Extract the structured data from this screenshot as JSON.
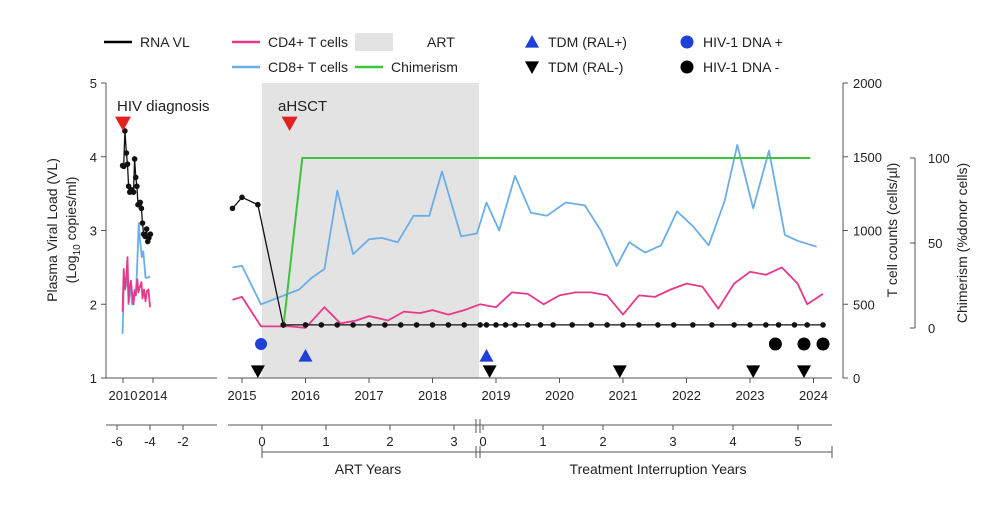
{
  "chart_data": {
    "type": "line",
    "legend": [
      {
        "key": "rna",
        "label": "RNA VL",
        "color": "#000000",
        "symbol": "line"
      },
      {
        "key": "cd4",
        "label": "CD4+ T cells",
        "color": "#e8388a",
        "symbol": "line"
      },
      {
        "key": "cd8",
        "label": "CD8+ T cells",
        "color": "#6aaee8",
        "symbol": "line"
      },
      {
        "key": "art",
        "label": "ART",
        "color": "#e3e3e3",
        "symbol": "rect"
      },
      {
        "key": "chim",
        "label": "Chimerism",
        "color": "#3cc43c",
        "symbol": "line"
      },
      {
        "key": "tdm_pos",
        "label": "TDM (RAL+)",
        "color": "#1f3fd6",
        "symbol": "triangle-up"
      },
      {
        "key": "tdm_neg",
        "label": "TDM (RAL-)",
        "color": "#000000",
        "symbol": "triangle-down"
      },
      {
        "key": "dna_pos",
        "label": "HIV-1 DNA +",
        "color": "#1f3fd6",
        "symbol": "circle"
      },
      {
        "key": "dna_neg",
        "label": "HIV-1 DNA -",
        "color": "#000000",
        "symbol": "circle"
      }
    ],
    "y_left": {
      "label_line1": "Plasma Viral Load (VL)",
      "label_line2_prefix": "(Log",
      "label_line2_sub": "10",
      "label_line2_suffix": " copies/ml)",
      "ticks": [
        "1",
        "2",
        "3",
        "4",
        "5"
      ],
      "range": [
        1,
        5
      ]
    },
    "y_right1": {
      "label": "T cell counts (cells/µl)",
      "ticks": [
        "0",
        "500",
        "1000",
        "1500",
        "2000"
      ],
      "range": [
        0,
        2000
      ]
    },
    "y_right2": {
      "label": "Chimerism (%donor cells)",
      "ticks": [
        "0",
        "50",
        "100"
      ],
      "range": [
        0,
        100
      ]
    },
    "x_years_panel1": {
      "ticks": [
        "2010",
        "2014"
      ]
    },
    "x_years_panel2": {
      "ticks": [
        "2015",
        "2016",
        "2017",
        "2018",
        "2019",
        "2020",
        "2021",
        "2022",
        "2023",
        "2024"
      ]
    },
    "x_relative_panel1": {
      "ticks": [
        "-6",
        "-4",
        "-2"
      ]
    },
    "x_art_years": {
      "label": "ART Years",
      "ticks": [
        "0",
        "1",
        "2",
        "3"
      ]
    },
    "x_ti_years": {
      "label": "Treatment Interruption Years",
      "ticks": [
        "0",
        "1",
        "2",
        "3",
        "4",
        "5"
      ]
    },
    "annotations": {
      "hiv_diagnosis": {
        "label": "HIV diagnosis",
        "year": 2010.0
      },
      "ahsct": {
        "label": "aHSCT",
        "year": 2015.75
      }
    },
    "art_period": [
      2015.45,
      2018.75
    ],
    "rna_vl": {
      "panel1": [
        [
          2009.95,
          3.88
        ],
        [
          2010.1,
          3.87
        ],
        [
          2010.25,
          4.35
        ],
        [
          2010.45,
          4.05
        ],
        [
          2010.6,
          3.9
        ],
        [
          2010.75,
          3.6
        ],
        [
          2010.9,
          3.52
        ],
        [
          2011.05,
          3.55
        ],
        [
          2011.2,
          3.55
        ],
        [
          2011.4,
          3.52
        ],
        [
          2011.55,
          3.97
        ],
        [
          2011.7,
          3.72
        ],
        [
          2011.85,
          3.6
        ],
        [
          2012.0,
          3.35
        ],
        [
          2012.15,
          3.35
        ],
        [
          2012.3,
          3.38
        ],
        [
          2012.45,
          3.3
        ],
        [
          2012.6,
          3.1
        ],
        [
          2012.75,
          2.95
        ],
        [
          2012.95,
          2.92
        ],
        [
          2013.15,
          3.02
        ],
        [
          2013.3,
          2.85
        ],
        [
          2013.45,
          2.9
        ],
        [
          2013.65,
          2.95
        ]
      ],
      "panel2": [
        [
          2014.85,
          3.3
        ],
        [
          2015.0,
          3.45
        ],
        [
          2015.25,
          3.35
        ],
        [
          2015.65,
          1.72
        ]
      ],
      "undetectable_value": 1.72,
      "undetectable_points": [
        2015.65,
        2016.0,
        2016.25,
        2016.5,
        2016.75,
        2017.0,
        2017.25,
        2017.5,
        2017.75,
        2018.0,
        2018.25,
        2018.5,
        2018.75,
        2018.85,
        2019.0,
        2019.15,
        2019.3,
        2019.5,
        2019.7,
        2019.9,
        2020.2,
        2020.5,
        2020.75,
        2021.0,
        2021.25,
        2021.55,
        2021.8,
        2022.1,
        2022.4,
        2022.75,
        2023.0,
        2023.25,
        2023.45,
        2023.7,
        2023.9,
        2024.15
      ]
    },
    "cd4": {
      "panel1": [
        [
          2009.95,
          450
        ],
        [
          2010.1,
          740
        ],
        [
          2010.25,
          600
        ],
        [
          2010.45,
          700
        ],
        [
          2010.6,
          820
        ],
        [
          2010.75,
          510
        ],
        [
          2010.9,
          620
        ],
        [
          2011.05,
          660
        ],
        [
          2011.2,
          580
        ],
        [
          2011.4,
          500
        ],
        [
          2011.55,
          590
        ],
        [
          2011.7,
          560
        ],
        [
          2011.9,
          670
        ],
        [
          2012.05,
          580
        ],
        [
          2012.25,
          620
        ],
        [
          2012.45,
          650
        ],
        [
          2012.6,
          540
        ],
        [
          2012.8,
          600
        ],
        [
          2013.0,
          520
        ],
        [
          2013.2,
          590
        ],
        [
          2013.4,
          600
        ],
        [
          2013.6,
          480
        ]
      ],
      "panel2": [
        [
          2014.85,
          530
        ],
        [
          2015.0,
          550
        ],
        [
          2015.3,
          350
        ],
        [
          2015.75,
          350
        ],
        [
          2016.0,
          340
        ],
        [
          2016.3,
          480
        ],
        [
          2016.55,
          370
        ],
        [
          2016.8,
          390
        ],
        [
          2017.0,
          420
        ],
        [
          2017.3,
          390
        ],
        [
          2017.55,
          450
        ],
        [
          2017.8,
          440
        ],
        [
          2018.0,
          460
        ],
        [
          2018.25,
          430
        ],
        [
          2018.5,
          460
        ],
        [
          2018.75,
          500
        ],
        [
          2019.0,
          480
        ],
        [
          2019.25,
          580
        ],
        [
          2019.5,
          570
        ],
        [
          2019.75,
          500
        ],
        [
          2020.0,
          560
        ],
        [
          2020.25,
          580
        ],
        [
          2020.5,
          580
        ],
        [
          2020.75,
          560
        ],
        [
          2021.0,
          430
        ],
        [
          2021.25,
          560
        ],
        [
          2021.5,
          550
        ],
        [
          2021.75,
          600
        ],
        [
          2022.0,
          640
        ],
        [
          2022.25,
          620
        ],
        [
          2022.5,
          470
        ],
        [
          2022.75,
          640
        ],
        [
          2023.0,
          720
        ],
        [
          2023.25,
          700
        ],
        [
          2023.5,
          750
        ],
        [
          2023.75,
          640
        ],
        [
          2023.9,
          500
        ],
        [
          2024.15,
          570
        ]
      ]
    },
    "cd8": {
      "panel1": [
        [
          2009.95,
          300
        ],
        [
          2010.1,
          620
        ],
        [
          2010.25,
          600
        ],
        [
          2010.45,
          630
        ],
        [
          2010.6,
          700
        ],
        [
          2010.75,
          500
        ],
        [
          2010.9,
          590
        ],
        [
          2011.05,
          610
        ],
        [
          2011.2,
          500
        ],
        [
          2011.4,
          520
        ],
        [
          2011.55,
          600
        ],
        [
          2011.7,
          560
        ],
        [
          2011.9,
          780
        ],
        [
          2012.1,
          1050
        ],
        [
          2012.3,
          920
        ],
        [
          2012.5,
          820
        ],
        [
          2012.7,
          860
        ],
        [
          2013.0,
          680
        ],
        [
          2013.3,
          680
        ],
        [
          2013.6,
          690
        ]
      ],
      "panel2": [
        [
          2014.85,
          750
        ],
        [
          2015.0,
          760
        ],
        [
          2015.3,
          500
        ],
        [
          2015.9,
          600
        ],
        [
          2016.1,
          680
        ],
        [
          2016.3,
          740
        ],
        [
          2016.5,
          1270
        ],
        [
          2016.75,
          840
        ],
        [
          2017.0,
          940
        ],
        [
          2017.2,
          950
        ],
        [
          2017.45,
          920
        ],
        [
          2017.7,
          1100
        ],
        [
          2017.95,
          1100
        ],
        [
          2018.15,
          1400
        ],
        [
          2018.45,
          960
        ],
        [
          2018.7,
          980
        ],
        [
          2018.85,
          1190
        ],
        [
          2019.05,
          1000
        ],
        [
          2019.3,
          1370
        ],
        [
          2019.55,
          1120
        ],
        [
          2019.8,
          1100
        ],
        [
          2020.1,
          1190
        ],
        [
          2020.4,
          1170
        ],
        [
          2020.65,
          1000
        ],
        [
          2020.9,
          760
        ],
        [
          2021.1,
          920
        ],
        [
          2021.35,
          850
        ],
        [
          2021.6,
          900
        ],
        [
          2021.85,
          1130
        ],
        [
          2022.1,
          1030
        ],
        [
          2022.35,
          900
        ],
        [
          2022.6,
          1200
        ],
        [
          2022.8,
          1580
        ],
        [
          2023.05,
          1150
        ],
        [
          2023.3,
          1540
        ],
        [
          2023.55,
          970
        ],
        [
          2023.75,
          930
        ],
        [
          2024.05,
          890
        ]
      ]
    },
    "chimerism": [
      [
        2015.65,
        0
      ],
      [
        2015.95,
        100
      ],
      [
        2023.95,
        100
      ]
    ],
    "tdm_ral_pos_years": [
      2016.0,
      2018.85
    ],
    "tdm_ral_neg_years": [
      2015.25,
      2018.9,
      2020.95,
      2023.05,
      2023.85
    ],
    "hiv_dna_pos_years": [
      2015.3
    ],
    "hiv_dna_neg_years": [
      2023.4,
      2023.85,
      2024.15
    ]
  }
}
